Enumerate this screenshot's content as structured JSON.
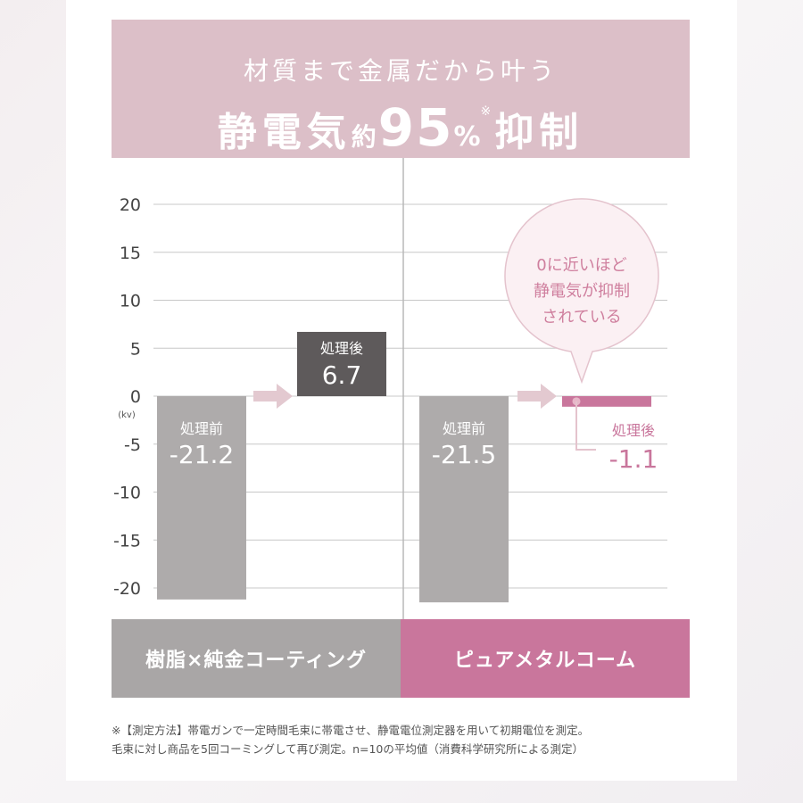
{
  "header": {
    "subtitle": "材質まで金属だから叶う",
    "title_part1": "静電気",
    "title_part2": "約",
    "title_number": "95",
    "title_percent": "%",
    "title_note_mark": "※",
    "title_part3": "抑制"
  },
  "chart_data": {
    "type": "bar",
    "unit_label": "(kv)",
    "ylim": [
      -20,
      20
    ],
    "yticks": [
      20,
      15,
      10,
      5,
      0,
      -5,
      -10,
      -15,
      -20
    ],
    "grid": true,
    "groups": [
      {
        "name": "樹脂×純金コーティング",
        "bars": [
          {
            "label": "処理前",
            "value": -21.2,
            "display": "-21.2"
          },
          {
            "label": "処理後",
            "value": 6.7,
            "display": "6.7"
          }
        ]
      },
      {
        "name": "ピュアメタルコーム",
        "bars": [
          {
            "label": "処理前",
            "value": -21.5,
            "display": "-21.5"
          },
          {
            "label": "処理後",
            "value": -1.1,
            "display": "-1.1"
          }
        ]
      }
    ],
    "callout_lines": [
      "0に近いほど",
      "静電気が抑制",
      "されている"
    ],
    "colors": {
      "before_bar": "#aeabab",
      "after_bar_left": "#5e5a5b",
      "after_bar_right": "#c9769c",
      "arrow": "#e3c9d0",
      "grid": "#c8c8c8",
      "callout_fill": "#fbf0f3",
      "callout_stroke": "#e4c3cd",
      "callout_text": "#cf7f9e",
      "pink_text": "#c9769c"
    }
  },
  "footnote": {
    "line1": "※【測定方法】帯電ガンで一定時間毛束に帯電させ、静電電位測定器を用いて初期電位を測定。",
    "line2": "毛束に対し商品を5回コーミングして再び測定。n=10の平均値（消費科学研究所による測定）"
  }
}
